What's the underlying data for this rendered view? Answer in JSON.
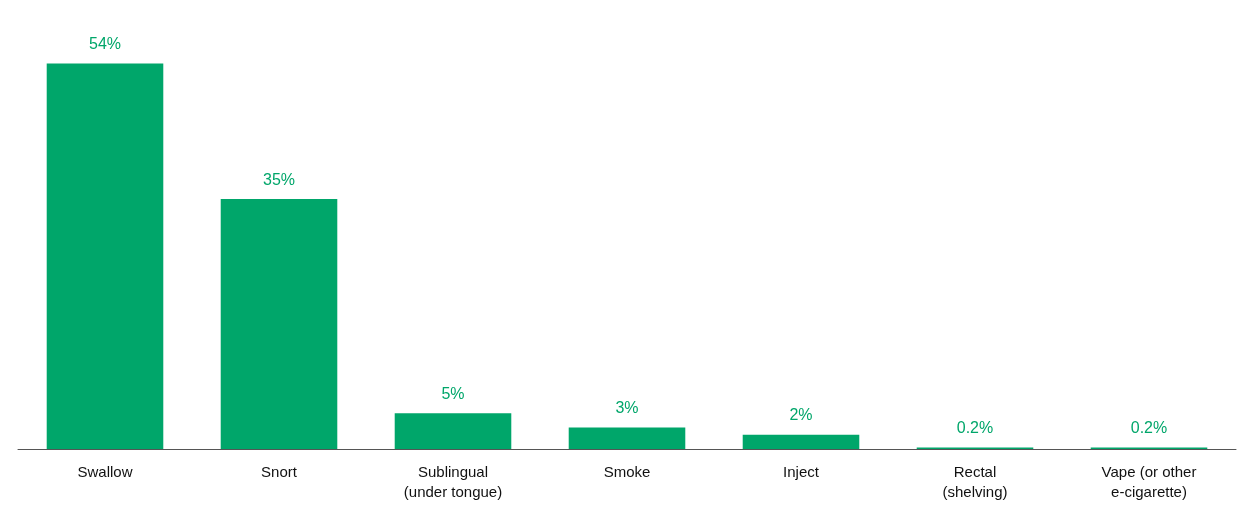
{
  "chart_data": {
    "type": "bar",
    "categories": [
      "Swallow",
      "Snort",
      "Sublingual\n(under tongue)",
      "Smoke",
      "Inject",
      "Rectal\n(shelving)",
      "Vape (or other\ne-cigarette)"
    ],
    "values": [
      54,
      35,
      5,
      3,
      2,
      0.2,
      0.2
    ],
    "value_labels": [
      "54%",
      "35%",
      "5%",
      "3%",
      "2%",
      "0.2%",
      "0.2%"
    ],
    "color": "#00a66a"
  }
}
